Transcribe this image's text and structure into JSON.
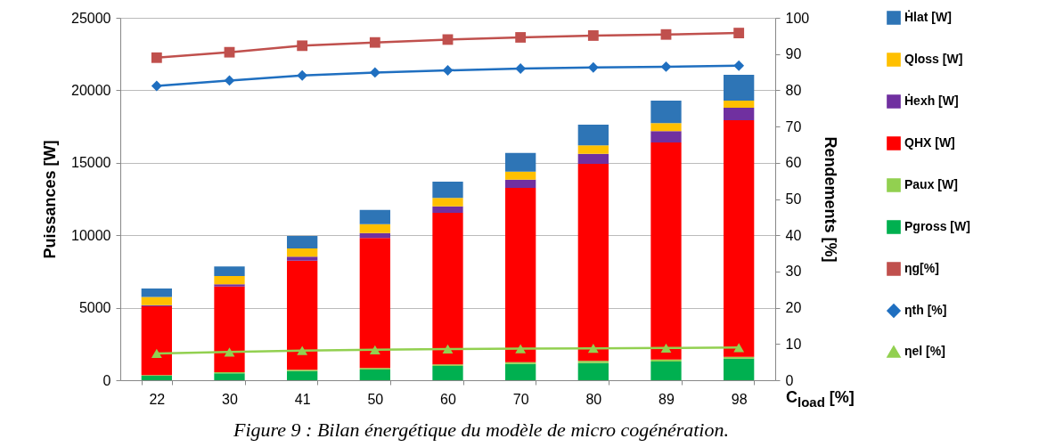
{
  "chart_data": {
    "type": "bar",
    "title": "Figure 9 : Bilan énergétique du modèle de micro cogénération.",
    "xlabel": "C$_{load}$ [%]",
    "ylabel": "Puissances [W]",
    "y2label": "Rendements [%]",
    "categories": [
      "22",
      "30",
      "41",
      "50",
      "60",
      "70",
      "80",
      "89",
      "98"
    ],
    "stacked": true,
    "series": [
      {
        "name": "Pgross [W]",
        "color": "#00b050",
        "values": [
          300,
          470,
          630,
          740,
          980,
          1120,
          1190,
          1290,
          1490
        ]
      },
      {
        "name": "Paux [W]",
        "color": "#92d050",
        "values": [
          60,
          80,
          90,
          100,
          110,
          130,
          140,
          140,
          130
        ]
      },
      {
        "name": "QHX [W]",
        "color": "#ff0000",
        "values": [
          4740,
          5920,
          7530,
          8970,
          10460,
          12020,
          13600,
          14970,
          16320
        ]
      },
      {
        "name": "Ḣexh [W]",
        "color": "#7030a0",
        "values": [
          80,
          150,
          270,
          340,
          450,
          570,
          690,
          780,
          860
        ]
      },
      {
        "name": "Qloss [W]",
        "color": "#ffc000",
        "values": [
          570,
          570,
          570,
          620,
          570,
          550,
          580,
          550,
          490
        ]
      },
      {
        "name": "Ḣlat [W]",
        "color": "#2e75b6",
        "values": [
          580,
          650,
          860,
          980,
          1130,
          1290,
          1430,
          1560,
          1780
        ]
      },
      {
        "name": "ηg[%]",
        "type": "line",
        "axis": "y2",
        "marker": "square",
        "color": "#c0504d",
        "values": [
          89,
          90.5,
          92.3,
          93.2,
          94,
          94.6,
          95.1,
          95.4,
          95.8
        ]
      },
      {
        "name": "ηth [%]",
        "type": "line",
        "axis": "y2",
        "marker": "diamond",
        "color": "#1f6fc0",
        "values": [
          81.2,
          82.7,
          84.1,
          84.9,
          85.5,
          86,
          86.3,
          86.5,
          86.8
        ]
      },
      {
        "name": "ηel [%]",
        "type": "line",
        "axis": "y2",
        "marker": "triangle",
        "color": "#92d050",
        "values": [
          7.4,
          7.8,
          8.2,
          8.4,
          8.6,
          8.7,
          8.8,
          8.9,
          9
        ]
      }
    ],
    "ylim": [
      0,
      25000
    ],
    "yticks": [
      0,
      5000,
      10000,
      15000,
      20000,
      25000
    ],
    "y2lim": [
      0,
      100
    ],
    "y2ticks": [
      0,
      10,
      20,
      30,
      40,
      50,
      60,
      70,
      80,
      90,
      100
    ],
    "grid": "y",
    "legend": "right"
  }
}
